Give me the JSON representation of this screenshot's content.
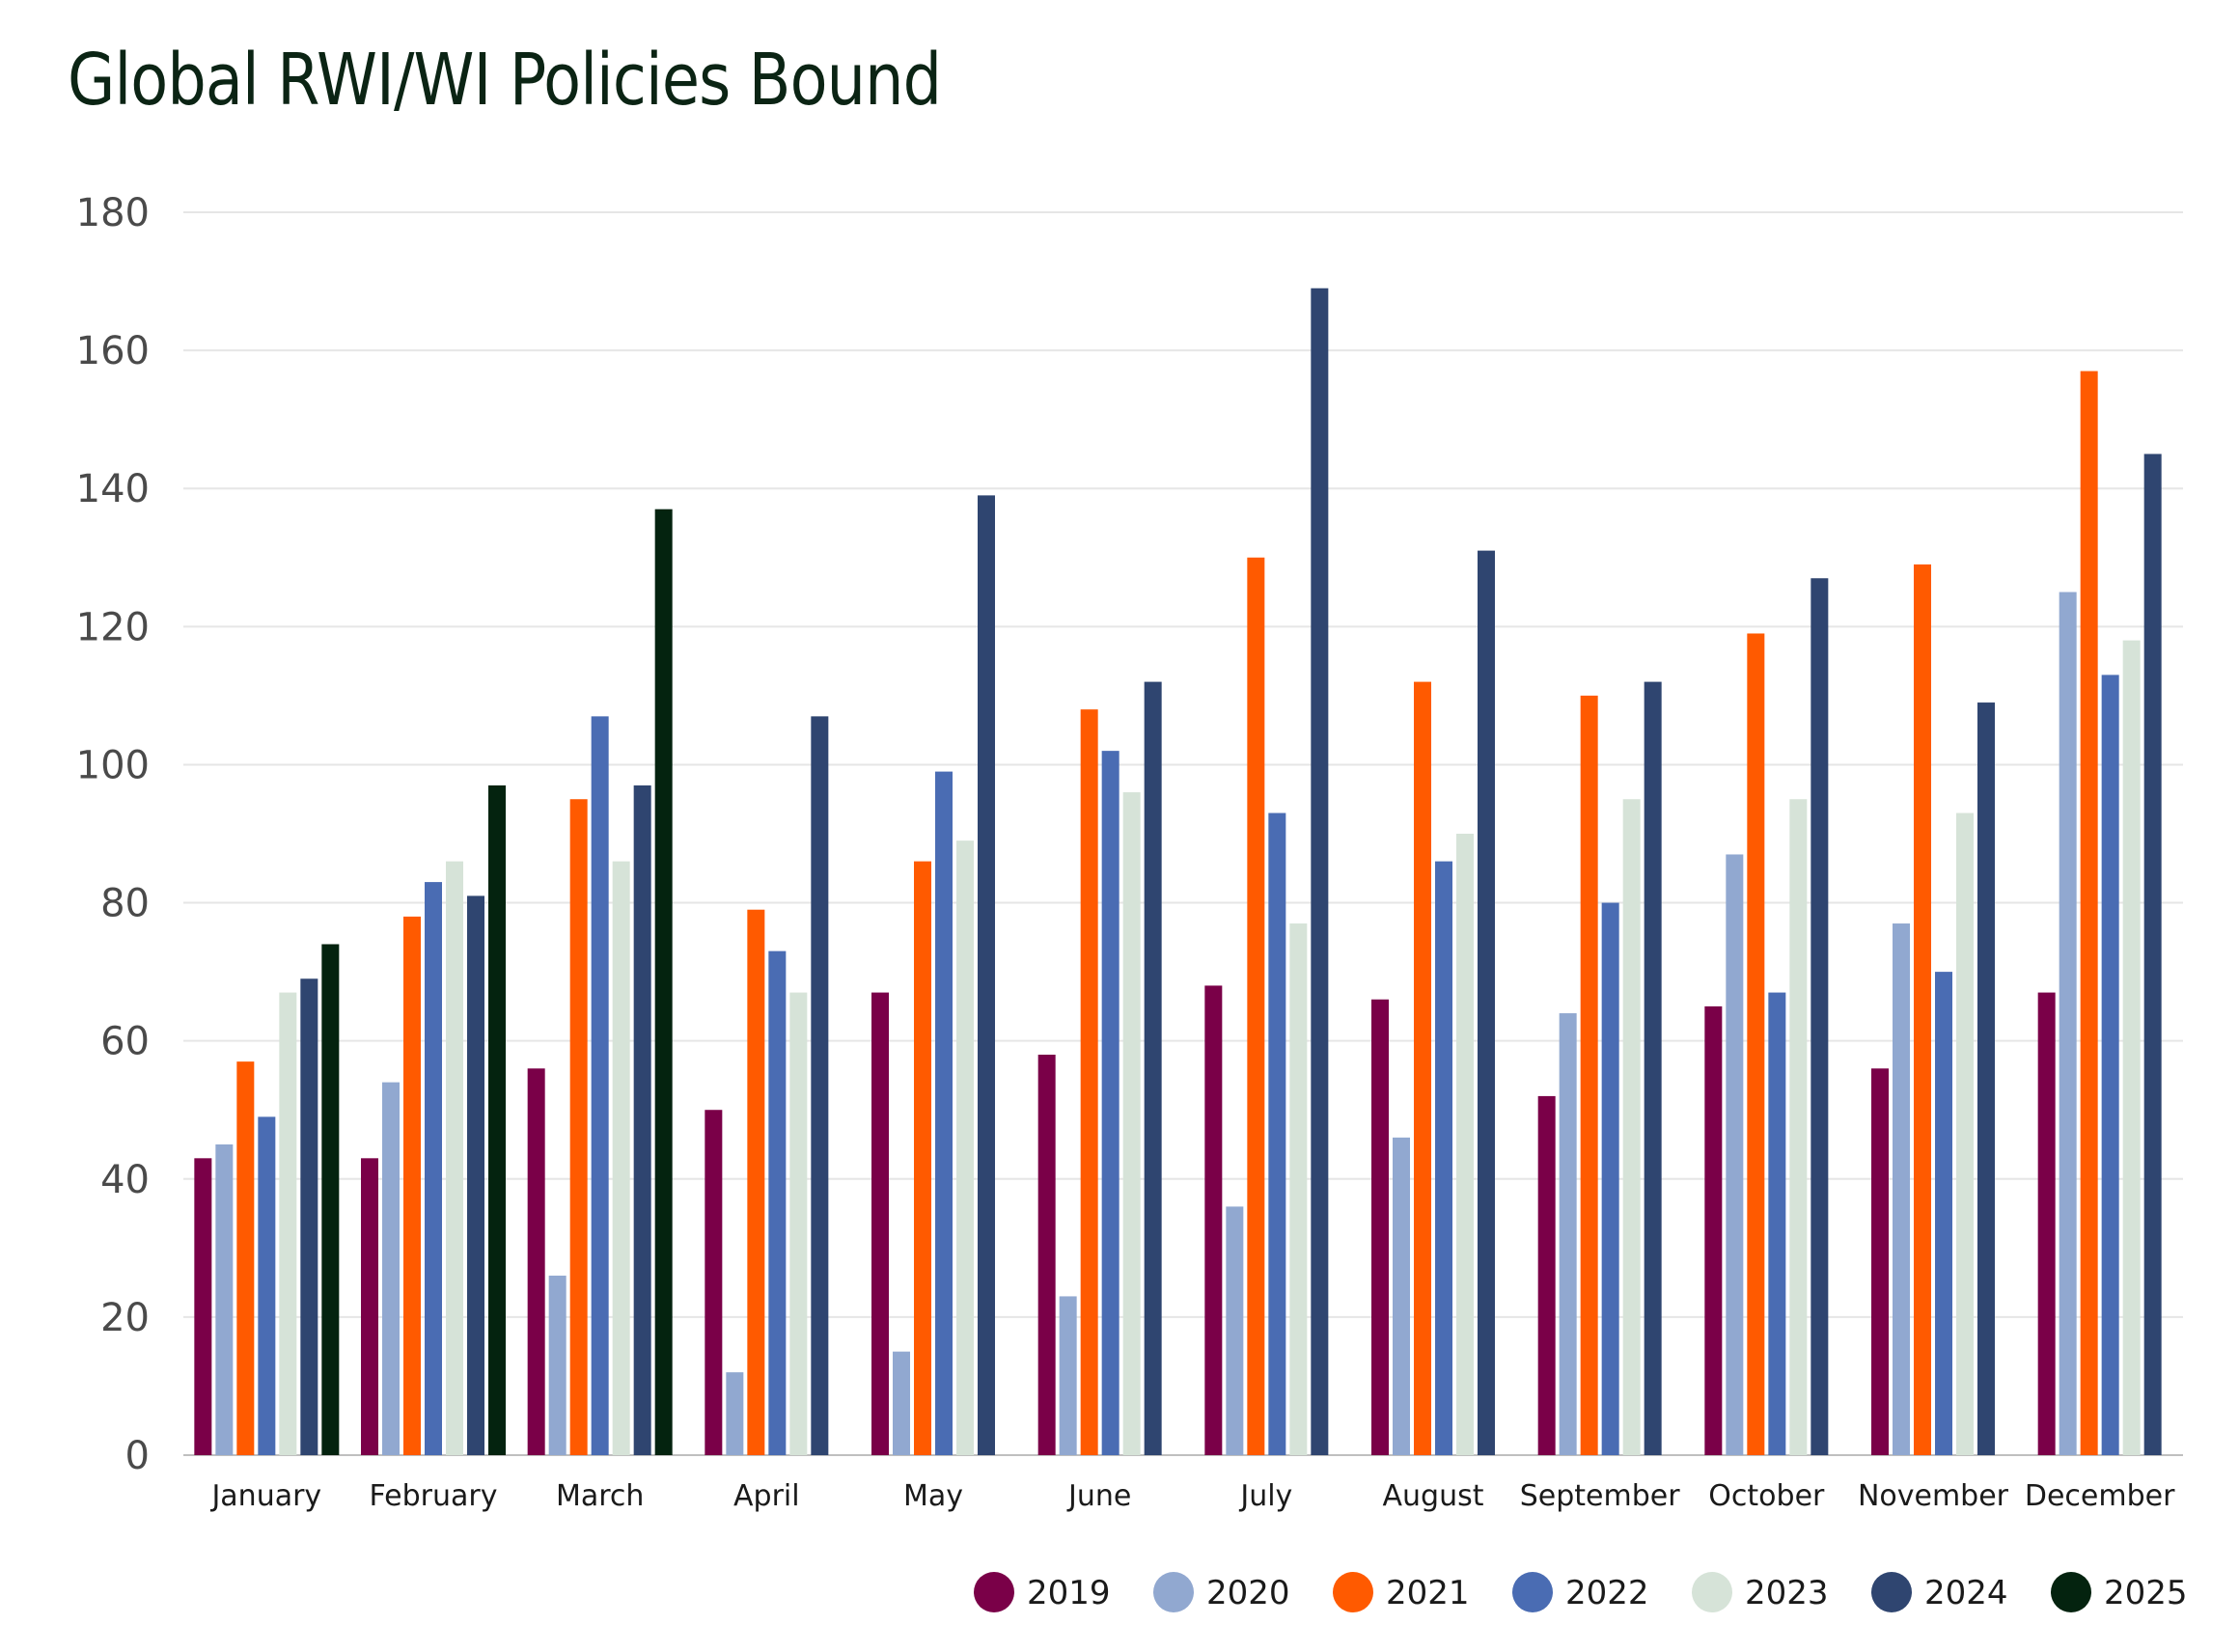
{
  "chart_data": {
    "type": "bar",
    "title": "Global RWI/WI Policies Bound",
    "xlabel": "",
    "ylabel": "",
    "ylim": [
      0,
      180
    ],
    "yticks": [
      0,
      20,
      40,
      60,
      80,
      100,
      120,
      140,
      160,
      180
    ],
    "grid": true,
    "legend_position": "bottom-right",
    "categories": [
      "January",
      "February",
      "March",
      "April",
      "May",
      "June",
      "July",
      "August",
      "September",
      "October",
      "November",
      "December"
    ],
    "series": [
      {
        "name": "2019",
        "color": "#7a0048",
        "values": [
          43,
          43,
          56,
          50,
          67,
          58,
          68,
          66,
          52,
          65,
          56,
          67
        ]
      },
      {
        "name": "2020",
        "color": "#91a8d0",
        "values": [
          45,
          54,
          26,
          12,
          15,
          23,
          36,
          46,
          64,
          87,
          77,
          125
        ]
      },
      {
        "name": "2021",
        "color": "#ff5a00",
        "values": [
          57,
          78,
          95,
          79,
          86,
          108,
          130,
          112,
          110,
          119,
          129,
          157
        ]
      },
      {
        "name": "2022",
        "color": "#4a6cb3",
        "values": [
          49,
          83,
          107,
          73,
          99,
          102,
          93,
          86,
          80,
          67,
          70,
          113
        ]
      },
      {
        "name": "2023",
        "color": "#d6e3d8",
        "values": [
          67,
          86,
          86,
          67,
          89,
          96,
          77,
          90,
          95,
          95,
          93,
          118
        ]
      },
      {
        "name": "2024",
        "color": "#2f4570",
        "values": [
          69,
          81,
          97,
          107,
          139,
          112,
          169,
          131,
          112,
          127,
          109,
          145
        ]
      },
      {
        "name": "2025",
        "color": "#04230f",
        "values": [
          74,
          97,
          137,
          null,
          null,
          null,
          null,
          null,
          null,
          null,
          null,
          null
        ]
      }
    ]
  }
}
